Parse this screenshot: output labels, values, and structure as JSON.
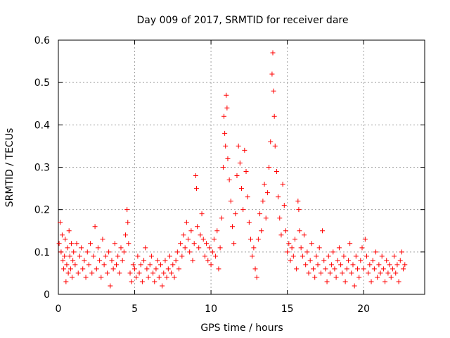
{
  "chart_data": {
    "type": "scatter",
    "title": "Day 009 of 2017, SRMTID for receiver dare",
    "xlabel": "GPS time / hours",
    "ylabel": "SRMTID / TECUs",
    "xlim": [
      0,
      24
    ],
    "ylim": [
      0,
      0.6
    ],
    "xticks": [
      0,
      5,
      10,
      15,
      20
    ],
    "xtick_labels": [
      "0",
      "5",
      "10",
      "15",
      "20"
    ],
    "yticks": [
      0,
      0.1,
      0.2,
      0.3,
      0.4,
      0.5,
      0.6
    ],
    "ytick_labels": [
      "0",
      "0.1",
      "0.2",
      "0.3",
      "0.4",
      "0.5",
      "0.6"
    ],
    "grid": true,
    "marker": "+",
    "color": "#ff0000",
    "series": [
      {
        "name": "SRMTID",
        "points": [
          [
            0.05,
            0.12
          ],
          [
            0.12,
            0.17
          ],
          [
            0.18,
            0.1
          ],
          [
            0.25,
            0.14
          ],
          [
            0.3,
            0.08
          ],
          [
            0.35,
            0.06
          ],
          [
            0.4,
            0.09
          ],
          [
            0.45,
            0.13
          ],
          [
            0.5,
            0.03
          ],
          [
            0.55,
            0.07
          ],
          [
            0.6,
            0.11
          ],
          [
            0.65,
            0.05
          ],
          [
            0.7,
            0.15
          ],
          [
            0.75,
            0.09
          ],
          [
            0.8,
            0.06
          ],
          [
            0.85,
            0.12
          ],
          [
            0.9,
            0.04
          ],
          [
            0.95,
            0.08
          ],
          [
            1.0,
            0.1
          ],
          [
            1.1,
            0.07
          ],
          [
            1.2,
            0.12
          ],
          [
            1.3,
            0.05
          ],
          [
            1.4,
            0.09
          ],
          [
            1.5,
            0.11
          ],
          [
            1.6,
            0.06
          ],
          [
            1.7,
            0.08
          ],
          [
            1.8,
            0.04
          ],
          [
            1.9,
            0.1
          ],
          [
            2.0,
            0.07
          ],
          [
            2.1,
            0.12
          ],
          [
            2.2,
            0.05
          ],
          [
            2.3,
            0.09
          ],
          [
            2.4,
            0.16
          ],
          [
            2.5,
            0.06
          ],
          [
            2.6,
            0.11
          ],
          [
            2.7,
            0.08
          ],
          [
            2.8,
            0.04
          ],
          [
            2.9,
            0.13
          ],
          [
            3.0,
            0.07
          ],
          [
            3.1,
            0.09
          ],
          [
            3.2,
            0.05
          ],
          [
            3.3,
            0.1
          ],
          [
            3.4,
            0.02
          ],
          [
            3.5,
            0.08
          ],
          [
            3.6,
            0.06
          ],
          [
            3.7,
            0.12
          ],
          [
            3.8,
            0.07
          ],
          [
            3.9,
            0.09
          ],
          [
            4.0,
            0.05
          ],
          [
            4.1,
            0.11
          ],
          [
            4.2,
            0.08
          ],
          [
            4.3,
            0.1
          ],
          [
            4.4,
            0.14
          ],
          [
            4.5,
            0.2
          ],
          [
            4.55,
            0.17
          ],
          [
            4.6,
            0.12
          ],
          [
            4.7,
            0.05
          ],
          [
            4.8,
            0.03
          ],
          [
            4.9,
            0.07
          ],
          [
            5.0,
            0.06
          ],
          [
            5.1,
            0.04
          ],
          [
            5.2,
            0.09
          ],
          [
            5.3,
            0.05
          ],
          [
            5.4,
            0.07
          ],
          [
            5.5,
            0.03
          ],
          [
            5.6,
            0.08
          ],
          [
            5.7,
            0.11
          ],
          [
            5.8,
            0.06
          ],
          [
            5.9,
            0.04
          ],
          [
            6.0,
            0.07
          ],
          [
            6.1,
            0.09
          ],
          [
            6.2,
            0.05
          ],
          [
            6.3,
            0.03
          ],
          [
            6.4,
            0.06
          ],
          [
            6.5,
            0.08
          ],
          [
            6.6,
            0.04
          ],
          [
            6.7,
            0.07
          ],
          [
            6.8,
            0.02
          ],
          [
            6.9,
            0.05
          ],
          [
            7.0,
            0.08
          ],
          [
            7.1,
            0.04
          ],
          [
            7.2,
            0.06
          ],
          [
            7.3,
            0.09
          ],
          [
            7.4,
            0.05
          ],
          [
            7.5,
            0.07
          ],
          [
            7.6,
            0.04
          ],
          [
            7.7,
            0.08
          ],
          [
            7.8,
            0.1
          ],
          [
            7.9,
            0.06
          ],
          [
            8.0,
            0.12
          ],
          [
            8.1,
            0.09
          ],
          [
            8.2,
            0.14
          ],
          [
            8.3,
            0.11
          ],
          [
            8.4,
            0.17
          ],
          [
            8.5,
            0.13
          ],
          [
            8.6,
            0.1
          ],
          [
            8.7,
            0.15
          ],
          [
            8.8,
            0.08
          ],
          [
            8.9,
            0.12
          ],
          [
            9.0,
            0.28
          ],
          [
            9.05,
            0.25
          ],
          [
            9.1,
            0.16
          ],
          [
            9.2,
            0.11
          ],
          [
            9.3,
            0.14
          ],
          [
            9.4,
            0.19
          ],
          [
            9.5,
            0.13
          ],
          [
            9.6,
            0.09
          ],
          [
            9.7,
            0.12
          ],
          [
            9.8,
            0.08
          ],
          [
            9.9,
            0.11
          ],
          [
            10.0,
            0.07
          ],
          [
            10.1,
            0.1
          ],
          [
            10.2,
            0.13
          ],
          [
            10.3,
            0.09
          ],
          [
            10.4,
            0.15
          ],
          [
            10.5,
            0.06
          ],
          [
            10.6,
            0.11
          ],
          [
            10.7,
            0.18
          ],
          [
            10.8,
            0.3
          ],
          [
            10.85,
            0.42
          ],
          [
            10.9,
            0.38
          ],
          [
            10.95,
            0.35
          ],
          [
            11.0,
            0.47
          ],
          [
            11.05,
            0.44
          ],
          [
            11.1,
            0.32
          ],
          [
            11.2,
            0.27
          ],
          [
            11.3,
            0.22
          ],
          [
            11.4,
            0.16
          ],
          [
            11.5,
            0.12
          ],
          [
            11.6,
            0.19
          ],
          [
            11.7,
            0.28
          ],
          [
            11.8,
            0.35
          ],
          [
            11.9,
            0.31
          ],
          [
            12.0,
            0.25
          ],
          [
            12.1,
            0.2
          ],
          [
            12.2,
            0.34
          ],
          [
            12.3,
            0.29
          ],
          [
            12.4,
            0.23
          ],
          [
            12.5,
            0.17
          ],
          [
            12.6,
            0.13
          ],
          [
            12.7,
            0.09
          ],
          [
            12.8,
            0.11
          ],
          [
            12.9,
            0.06
          ],
          [
            13.0,
            0.04
          ],
          [
            13.1,
            0.13
          ],
          [
            13.2,
            0.19
          ],
          [
            13.3,
            0.15
          ],
          [
            13.4,
            0.22
          ],
          [
            13.5,
            0.26
          ],
          [
            13.6,
            0.18
          ],
          [
            13.7,
            0.24
          ],
          [
            13.8,
            0.3
          ],
          [
            13.9,
            0.36
          ],
          [
            14.0,
            0.52
          ],
          [
            14.05,
            0.57
          ],
          [
            14.1,
            0.48
          ],
          [
            14.15,
            0.42
          ],
          [
            14.2,
            0.35
          ],
          [
            14.3,
            0.29
          ],
          [
            14.4,
            0.23
          ],
          [
            14.5,
            0.18
          ],
          [
            14.6,
            0.14
          ],
          [
            14.7,
            0.26
          ],
          [
            14.8,
            0.21
          ],
          [
            14.9,
            0.15
          ],
          [
            15.0,
            0.1
          ],
          [
            15.1,
            0.12
          ],
          [
            15.2,
            0.08
          ],
          [
            15.3,
            0.11
          ],
          [
            15.4,
            0.09
          ],
          [
            15.5,
            0.13
          ],
          [
            15.6,
            0.06
          ],
          [
            15.7,
            0.22
          ],
          [
            15.75,
            0.2
          ],
          [
            15.8,
            0.15
          ],
          [
            15.9,
            0.11
          ],
          [
            16.0,
            0.09
          ],
          [
            16.1,
            0.14
          ],
          [
            16.2,
            0.07
          ],
          [
            16.3,
            0.1
          ],
          [
            16.4,
            0.05
          ],
          [
            16.5,
            0.08
          ],
          [
            16.6,
            0.12
          ],
          [
            16.7,
            0.06
          ],
          [
            16.8,
            0.04
          ],
          [
            16.9,
            0.09
          ],
          [
            17.0,
            0.07
          ],
          [
            17.1,
            0.11
          ],
          [
            17.2,
            0.05
          ],
          [
            17.3,
            0.15
          ],
          [
            17.4,
            0.08
          ],
          [
            17.5,
            0.06
          ],
          [
            17.6,
            0.03
          ],
          [
            17.7,
            0.09
          ],
          [
            17.8,
            0.05
          ],
          [
            17.9,
            0.07
          ],
          [
            18.0,
            0.1
          ],
          [
            18.1,
            0.06
          ],
          [
            18.2,
            0.04
          ],
          [
            18.3,
            0.08
          ],
          [
            18.4,
            0.11
          ],
          [
            18.5,
            0.07
          ],
          [
            18.6,
            0.05
          ],
          [
            18.7,
            0.09
          ],
          [
            18.8,
            0.03
          ],
          [
            18.9,
            0.06
          ],
          [
            19.0,
            0.08
          ],
          [
            19.1,
            0.12
          ],
          [
            19.2,
            0.05
          ],
          [
            19.3,
            0.07
          ],
          [
            19.4,
            0.02
          ],
          [
            19.5,
            0.09
          ],
          [
            19.6,
            0.06
          ],
          [
            19.7,
            0.04
          ],
          [
            19.8,
            0.08
          ],
          [
            19.9,
            0.11
          ],
          [
            20.0,
            0.06
          ],
          [
            20.1,
            0.13
          ],
          [
            20.2,
            0.09
          ],
          [
            20.3,
            0.05
          ],
          [
            20.4,
            0.07
          ],
          [
            20.5,
            0.03
          ],
          [
            20.6,
            0.08
          ],
          [
            20.7,
            0.06
          ],
          [
            20.8,
            0.1
          ],
          [
            20.9,
            0.04
          ],
          [
            21.0,
            0.07
          ],
          [
            21.1,
            0.05
          ],
          [
            21.2,
            0.09
          ],
          [
            21.3,
            0.06
          ],
          [
            21.4,
            0.03
          ],
          [
            21.5,
            0.08
          ],
          [
            21.6,
            0.05
          ],
          [
            21.7,
            0.07
          ],
          [
            21.8,
            0.04
          ],
          [
            21.9,
            0.06
          ],
          [
            22.0,
            0.09
          ],
          [
            22.1,
            0.05
          ],
          [
            22.2,
            0.07
          ],
          [
            22.3,
            0.03
          ],
          [
            22.4,
            0.08
          ],
          [
            22.5,
            0.1
          ],
          [
            22.6,
            0.06
          ],
          [
            22.7,
            0.07
          ]
        ]
      }
    ]
  }
}
